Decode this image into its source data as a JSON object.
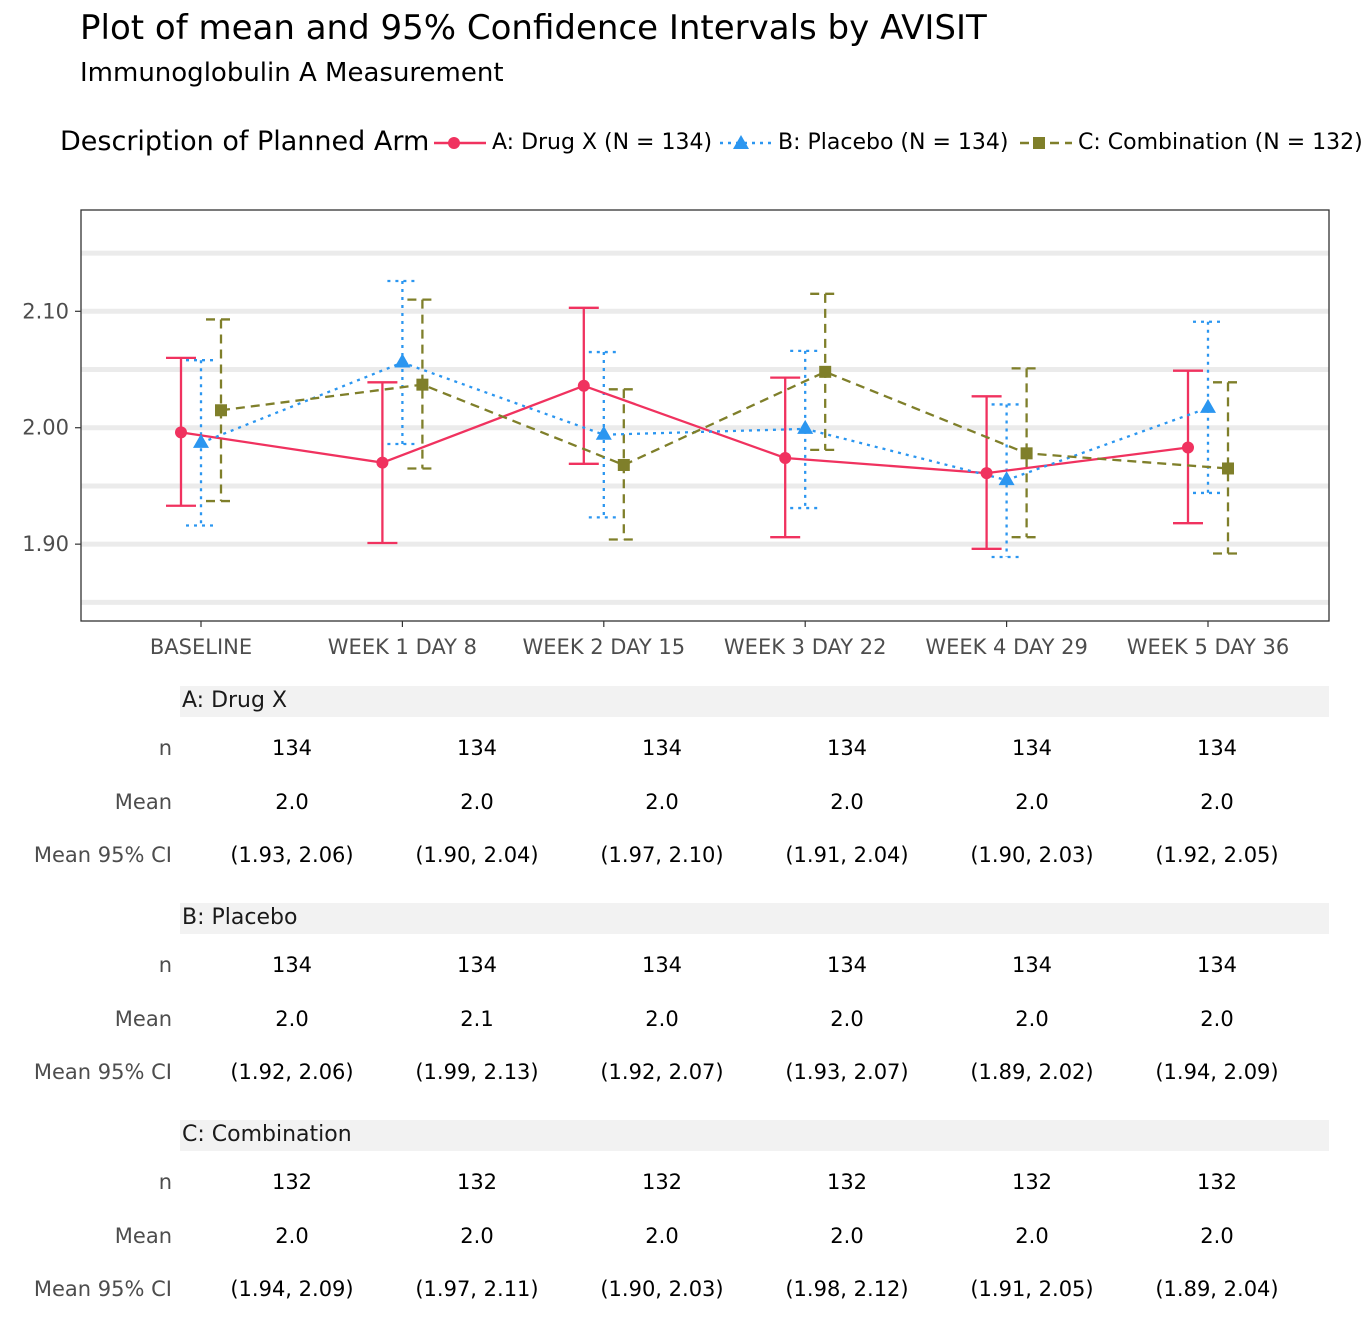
{
  "title": "Plot of mean and 95% Confidence Intervals by AVISIT",
  "subtitle": "Immunoglobulin A Measurement",
  "legend": {
    "title": "Description of Planned Arm",
    "entries": [
      {
        "label": "A: Drug X (N = 134)",
        "color": "#f0325f",
        "marker": "circle",
        "line": "solid"
      },
      {
        "label": "B: Placebo (N = 134)",
        "color": "#2b96f0",
        "marker": "triangle",
        "line": "dotted"
      },
      {
        "label": "C: Combination (N = 132)",
        "color": "#7f7f2a",
        "marker": "square",
        "line": "dashed"
      }
    ]
  },
  "chart_data": {
    "type": "line",
    "categories": [
      "BASELINE",
      "WEEK 1 DAY 8",
      "WEEK 2 DAY 15",
      "WEEK 3 DAY 22",
      "WEEK 4 DAY 29",
      "WEEK 5 DAY 36"
    ],
    "ylim": [
      1.834,
      2.187
    ],
    "yticks": [
      1.9,
      2.0,
      2.1
    ],
    "ytick_labels": [
      "1.90",
      "2.00",
      "2.10"
    ],
    "grid": true,
    "legend_position": "top",
    "series": [
      {
        "name": "A: Drug X (N = 134)",
        "color": "#f0325f",
        "marker": "circle",
        "line": "solid",
        "mean": [
          1.996,
          1.97,
          2.036,
          1.974,
          1.961,
          1.983
        ],
        "lower": [
          1.933,
          1.901,
          1.969,
          1.906,
          1.896,
          1.918
        ],
        "upper": [
          2.06,
          2.039,
          2.103,
          2.043,
          2.027,
          2.049
        ]
      },
      {
        "name": "B: Placebo (N = 134)",
        "color": "#2b96f0",
        "marker": "triangle",
        "line": "dotted",
        "mean": [
          1.987,
          2.056,
          1.994,
          1.999,
          1.955,
          2.017
        ],
        "lower": [
          1.916,
          1.986,
          1.923,
          1.931,
          1.889,
          1.944
        ],
        "upper": [
          2.058,
          2.126,
          2.065,
          2.066,
          2.02,
          2.091
        ]
      },
      {
        "name": "C: Combination (N = 132)",
        "color": "#7f7f2a",
        "marker": "square",
        "line": "dashed",
        "mean": [
          2.015,
          2.037,
          1.968,
          2.048,
          1.978,
          1.965
        ],
        "lower": [
          1.937,
          1.965,
          1.904,
          1.981,
          1.906,
          1.892
        ],
        "upper": [
          2.093,
          2.11,
          2.033,
          2.115,
          2.051,
          2.039
        ]
      }
    ]
  },
  "table": {
    "row_labels": [
      "n",
      "Mean",
      "Mean 95% CI"
    ],
    "groups": [
      {
        "name": "A: Drug X",
        "n": [
          "134",
          "134",
          "134",
          "134",
          "134",
          "134"
        ],
        "mean": [
          "2.0",
          "2.0",
          "2.0",
          "2.0",
          "2.0",
          "2.0"
        ],
        "ci": [
          "(1.93, 2.06)",
          "(1.90, 2.04)",
          "(1.97, 2.10)",
          "(1.91, 2.04)",
          "(1.90, 2.03)",
          "(1.92, 2.05)"
        ]
      },
      {
        "name": "B: Placebo",
        "n": [
          "134",
          "134",
          "134",
          "134",
          "134",
          "134"
        ],
        "mean": [
          "2.0",
          "2.1",
          "2.0",
          "2.0",
          "2.0",
          "2.0"
        ],
        "ci": [
          "(1.92, 2.06)",
          "(1.99, 2.13)",
          "(1.92, 2.07)",
          "(1.93, 2.07)",
          "(1.89, 2.02)",
          "(1.94, 2.09)"
        ]
      },
      {
        "name": "C: Combination",
        "n": [
          "132",
          "132",
          "132",
          "132",
          "132",
          "132"
        ],
        "mean": [
          "2.0",
          "2.0",
          "2.0",
          "2.0",
          "2.0",
          "2.0"
        ],
        "ci": [
          "(1.94, 2.09)",
          "(1.97, 2.11)",
          "(1.90, 2.03)",
          "(1.98, 2.12)",
          "(1.91, 2.05)",
          "(1.89, 2.04)"
        ]
      }
    ]
  }
}
